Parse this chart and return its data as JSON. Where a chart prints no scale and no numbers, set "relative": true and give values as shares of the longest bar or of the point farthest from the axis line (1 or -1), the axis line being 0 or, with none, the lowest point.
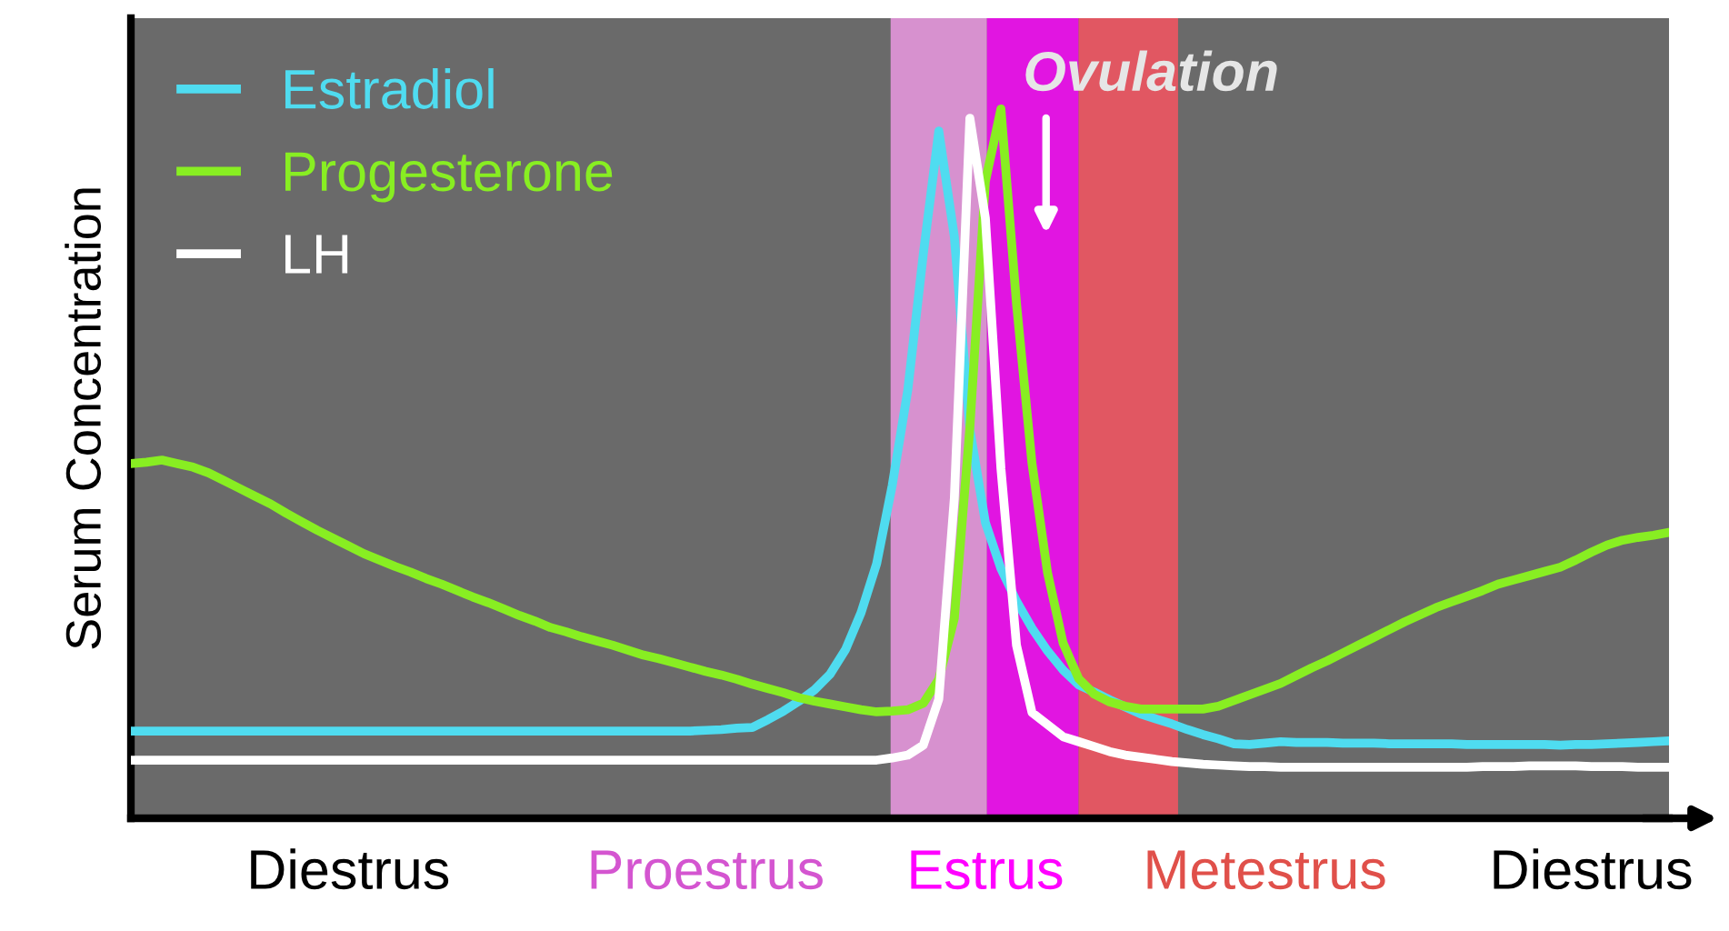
{
  "chart_data": {
    "type": "line",
    "relative": true,
    "ylabel": "Serum Concentration",
    "categories": [
      null,
      null,
      null,
      null,
      null,
      null,
      null,
      null,
      null,
      null,
      null,
      null,
      null,
      null,
      "Diestrus",
      null,
      null,
      null,
      null,
      null,
      null,
      null,
      null,
      null,
      null,
      null,
      null,
      null,
      null,
      null,
      null,
      null,
      null,
      null,
      null,
      null,
      null,
      "Proestrus",
      null,
      null,
      null,
      null,
      null,
      null,
      null,
      null,
      null,
      null,
      null,
      null,
      null,
      null,
      null,
      null,
      null,
      "Estrus",
      null,
      null,
      null,
      null,
      null,
      null,
      null,
      null,
      null,
      null,
      null,
      null,
      null,
      null,
      null,
      null,
      null,
      "Metestrus",
      null,
      null,
      null,
      null,
      null,
      null,
      null,
      null,
      null,
      null,
      null,
      null,
      null,
      null,
      null,
      null,
      null,
      null,
      null,
      null,
      "Diestrus",
      null,
      null,
      null,
      null,
      null
    ],
    "series": [
      {
        "name": "Estradiol",
        "color": "#4fdcf0",
        "values": [
          0.123,
          0.123,
          0.123,
          0.123,
          0.123,
          0.123,
          0.123,
          0.123,
          0.123,
          0.123,
          0.123,
          0.123,
          0.123,
          0.123,
          0.123,
          0.123,
          0.123,
          0.123,
          0.123,
          0.123,
          0.123,
          0.123,
          0.123,
          0.123,
          0.123,
          0.123,
          0.123,
          0.123,
          0.123,
          0.123,
          0.123,
          0.123,
          0.123,
          0.123,
          0.123,
          0.123,
          0.123,
          0.124,
          0.125,
          0.127,
          0.128,
          0.139,
          0.151,
          0.165,
          0.181,
          0.203,
          0.238,
          0.29,
          0.359,
          0.469,
          0.603,
          0.795,
          0.969,
          0.82,
          0.548,
          0.417,
          0.352,
          0.306,
          0.268,
          0.236,
          0.209,
          0.188,
          0.178,
          0.167,
          0.157,
          0.147,
          0.14,
          0.133,
          0.125,
          0.118,
          0.112,
          0.105,
          0.104,
          0.106,
          0.108,
          0.107,
          0.107,
          0.107,
          0.106,
          0.106,
          0.106,
          0.105,
          0.105,
          0.105,
          0.105,
          0.105,
          0.104,
          0.104,
          0.104,
          0.104,
          0.104,
          0.104,
          0.103,
          0.104,
          0.104,
          0.105,
          0.106,
          0.107,
          0.108,
          0.109
        ]
      },
      {
        "name": "Progesterone",
        "color": "#88ee22",
        "values": [
          0.5,
          0.502,
          0.505,
          0.5,
          0.495,
          0.487,
          0.476,
          0.465,
          0.454,
          0.443,
          0.43,
          0.418,
          0.406,
          0.395,
          0.384,
          0.373,
          0.364,
          0.355,
          0.347,
          0.338,
          0.33,
          0.321,
          0.312,
          0.304,
          0.295,
          0.286,
          0.278,
          0.269,
          0.263,
          0.256,
          0.25,
          0.244,
          0.237,
          0.23,
          0.225,
          0.219,
          0.213,
          0.207,
          0.202,
          0.196,
          0.189,
          0.183,
          0.177,
          0.17,
          0.165,
          0.161,
          0.157,
          0.153,
          0.15,
          0.151,
          0.153,
          0.162,
          0.196,
          0.282,
          0.551,
          0.898,
          1,
          0.726,
          0.5,
          0.346,
          0.247,
          0.197,
          0.175,
          0.164,
          0.158,
          0.154,
          0.154,
          0.154,
          0.154,
          0.154,
          0.158,
          0.166,
          0.174,
          0.182,
          0.19,
          0.201,
          0.212,
          0.222,
          0.233,
          0.244,
          0.255,
          0.266,
          0.277,
          0.287,
          0.297,
          0.305,
          0.313,
          0.321,
          0.33,
          0.336,
          0.342,
          0.348,
          0.354,
          0.364,
          0.375,
          0.385,
          0.392,
          0.396,
          0.399,
          0.403
        ]
      },
      {
        "name": "LH",
        "color": "#ffffff",
        "values": [
          0.082,
          0.082,
          0.082,
          0.082,
          0.082,
          0.082,
          0.082,
          0.082,
          0.082,
          0.082,
          0.082,
          0.082,
          0.082,
          0.082,
          0.082,
          0.082,
          0.082,
          0.082,
          0.082,
          0.082,
          0.082,
          0.082,
          0.082,
          0.082,
          0.082,
          0.082,
          0.082,
          0.082,
          0.082,
          0.082,
          0.082,
          0.082,
          0.082,
          0.082,
          0.082,
          0.082,
          0.082,
          0.082,
          0.082,
          0.082,
          0.082,
          0.082,
          0.082,
          0.082,
          0.082,
          0.082,
          0.082,
          0.082,
          0.082,
          0.085,
          0.089,
          0.103,
          0.168,
          0.451,
          0.987,
          0.846,
          0.493,
          0.244,
          0.149,
          0.132,
          0.115,
          0.108,
          0.101,
          0.094,
          0.089,
          0.086,
          0.083,
          0.08,
          0.078,
          0.076,
          0.075,
          0.074,
          0.073,
          0.073,
          0.072,
          0.072,
          0.072,
          0.072,
          0.072,
          0.072,
          0.072,
          0.072,
          0.072,
          0.072,
          0.072,
          0.072,
          0.072,
          0.073,
          0.073,
          0.073,
          0.074,
          0.074,
          0.074,
          0.074,
          0.073,
          0.073,
          0.073,
          0.072,
          0.072,
          0.072
        ]
      }
    ],
    "annotations": [
      "Ovulation"
    ],
    "legend": "top left",
    "grid": false,
    "marker": "none",
    "line_style": "solid"
  }
}
